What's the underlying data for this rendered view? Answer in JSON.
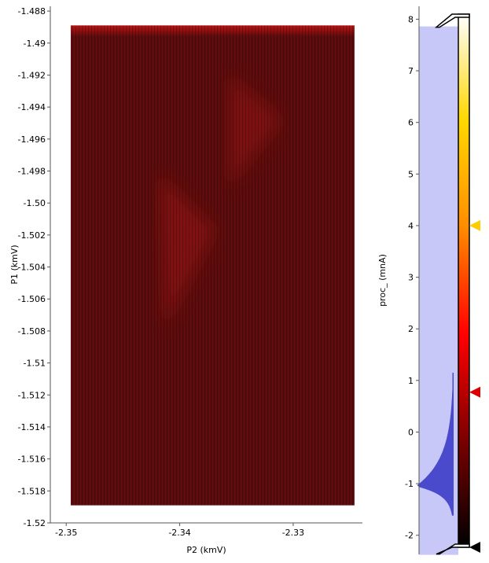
{
  "chart_data": [
    {
      "type": "heatmap",
      "xlabel": "P2 (kmV)",
      "ylabel": "P1 (kmV)",
      "x_ticks": [
        "-2.35",
        "-2.34",
        "-2.33"
      ],
      "x_tick_values": [
        -2.35,
        -2.34,
        -2.33
      ],
      "xlim": [
        -2.3514,
        -2.3239
      ],
      "y_ticks": [
        "-1.488",
        "-1.49",
        "-1.492",
        "-1.494",
        "-1.496",
        "-1.498",
        "-1.50",
        "-1.502",
        "-1.504",
        "-1.506",
        "-1.508",
        "-1.51",
        "-1.512",
        "-1.514",
        "-1.516",
        "-1.518",
        "-1.52"
      ],
      "y_tick_values": [
        -1.488,
        -1.49,
        -1.492,
        -1.494,
        -1.496,
        -1.498,
        -1.5,
        -1.502,
        -1.504,
        -1.506,
        -1.508,
        -1.51,
        -1.512,
        -1.514,
        -1.516,
        -1.518,
        -1.52
      ],
      "ylim": [
        -1.52,
        -1.4877
      ],
      "data_extent": {
        "x": [
          -2.3496,
          -2.3246
        ],
        "y": [
          -1.5189,
          -1.4889
        ]
      },
      "features": [
        {
          "shape": "triangle",
          "vertices": [
            [
              -2.3357,
              -1.4919
            ],
            [
              -2.3309,
              -1.4948
            ],
            [
              -2.3357,
              -1.499
            ]
          ],
          "relative_intensity": 0.55
        },
        {
          "shape": "triangle",
          "vertices": [
            [
              -2.3418,
              -1.4982
            ],
            [
              -2.3368,
              -1.5017
            ],
            [
              -2.3413,
              -1.5078
            ]
          ],
          "relative_intensity": 0.6
        }
      ],
      "colors": {
        "background": "#5a0c0c",
        "feature": "#a01818",
        "top_edge": "#c81414"
      }
    },
    {
      "type": "histogram",
      "role": "colorbar",
      "ylabel": "proc_ (mnA)",
      "ticks": [
        "8",
        "7",
        "6",
        "5",
        "4",
        "3",
        "2",
        "1",
        "0",
        "-1",
        "-2"
      ],
      "tick_values": [
        8,
        7,
        6,
        5,
        4,
        3,
        2,
        1,
        0,
        -1,
        -2
      ],
      "ylim": [
        -2.37,
        8.25
      ],
      "colormap": [
        "#000000",
        "#7a0000",
        "#ff0000",
        "#ff8c00",
        "#ffd700",
        "#ffffff"
      ],
      "level_max": 7.86,
      "level_min": -2.38,
      "marker_high": 3.8,
      "marker_mid": 0.6,
      "histogram_peak": -1.05,
      "colors": {
        "histogram_fill": "#4a4acc",
        "region_fill": "#c8c8f8",
        "marker_high": "#ffcc00",
        "marker_mid": "#dd0000"
      }
    }
  ]
}
